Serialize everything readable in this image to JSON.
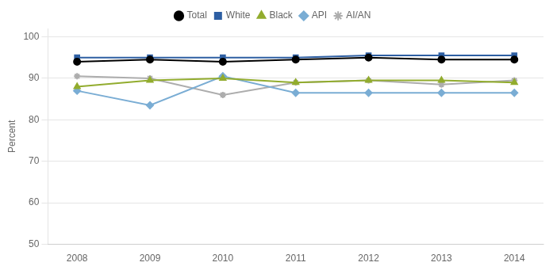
{
  "chart_data": {
    "type": "line",
    "x": [
      2008,
      2009,
      2010,
      2011,
      2012,
      2013,
      2014
    ],
    "series": [
      {
        "name": "Total",
        "color": "#000000",
        "marker": "circle",
        "values": [
          94.0,
          94.5,
          94.0,
          94.5,
          95.0,
          94.5,
          94.5
        ]
      },
      {
        "name": "White",
        "color": "#2E5FA3",
        "marker": "square",
        "values": [
          95.0,
          95.0,
          95.0,
          95.0,
          95.5,
          95.5,
          95.5
        ]
      },
      {
        "name": "Black",
        "color": "#92AC2E",
        "marker": "triangle",
        "values": [
          88.0,
          89.5,
          90.0,
          89.0,
          89.5,
          89.5,
          89.0
        ]
      },
      {
        "name": "API",
        "color": "#7AADD4",
        "marker": "diamond",
        "values": [
          87.0,
          83.5,
          90.5,
          86.5,
          86.5,
          86.5,
          86.5
        ]
      },
      {
        "name": "AI/AN",
        "color": "#ADADAD",
        "marker": "star",
        "values": [
          90.5,
          90.0,
          86.0,
          89.0,
          89.5,
          88.5,
          89.5
        ]
      }
    ],
    "ylabel": "Percent",
    "xlim": [
      2007.6,
      2014.4
    ],
    "xticks": [
      2008,
      2009,
      2010,
      2011,
      2012,
      2013,
      2014
    ],
    "ylim": [
      50,
      102
    ],
    "yticks": [
      50,
      60,
      70,
      80,
      90,
      100
    ],
    "grid": "y",
    "legend": "top"
  }
}
